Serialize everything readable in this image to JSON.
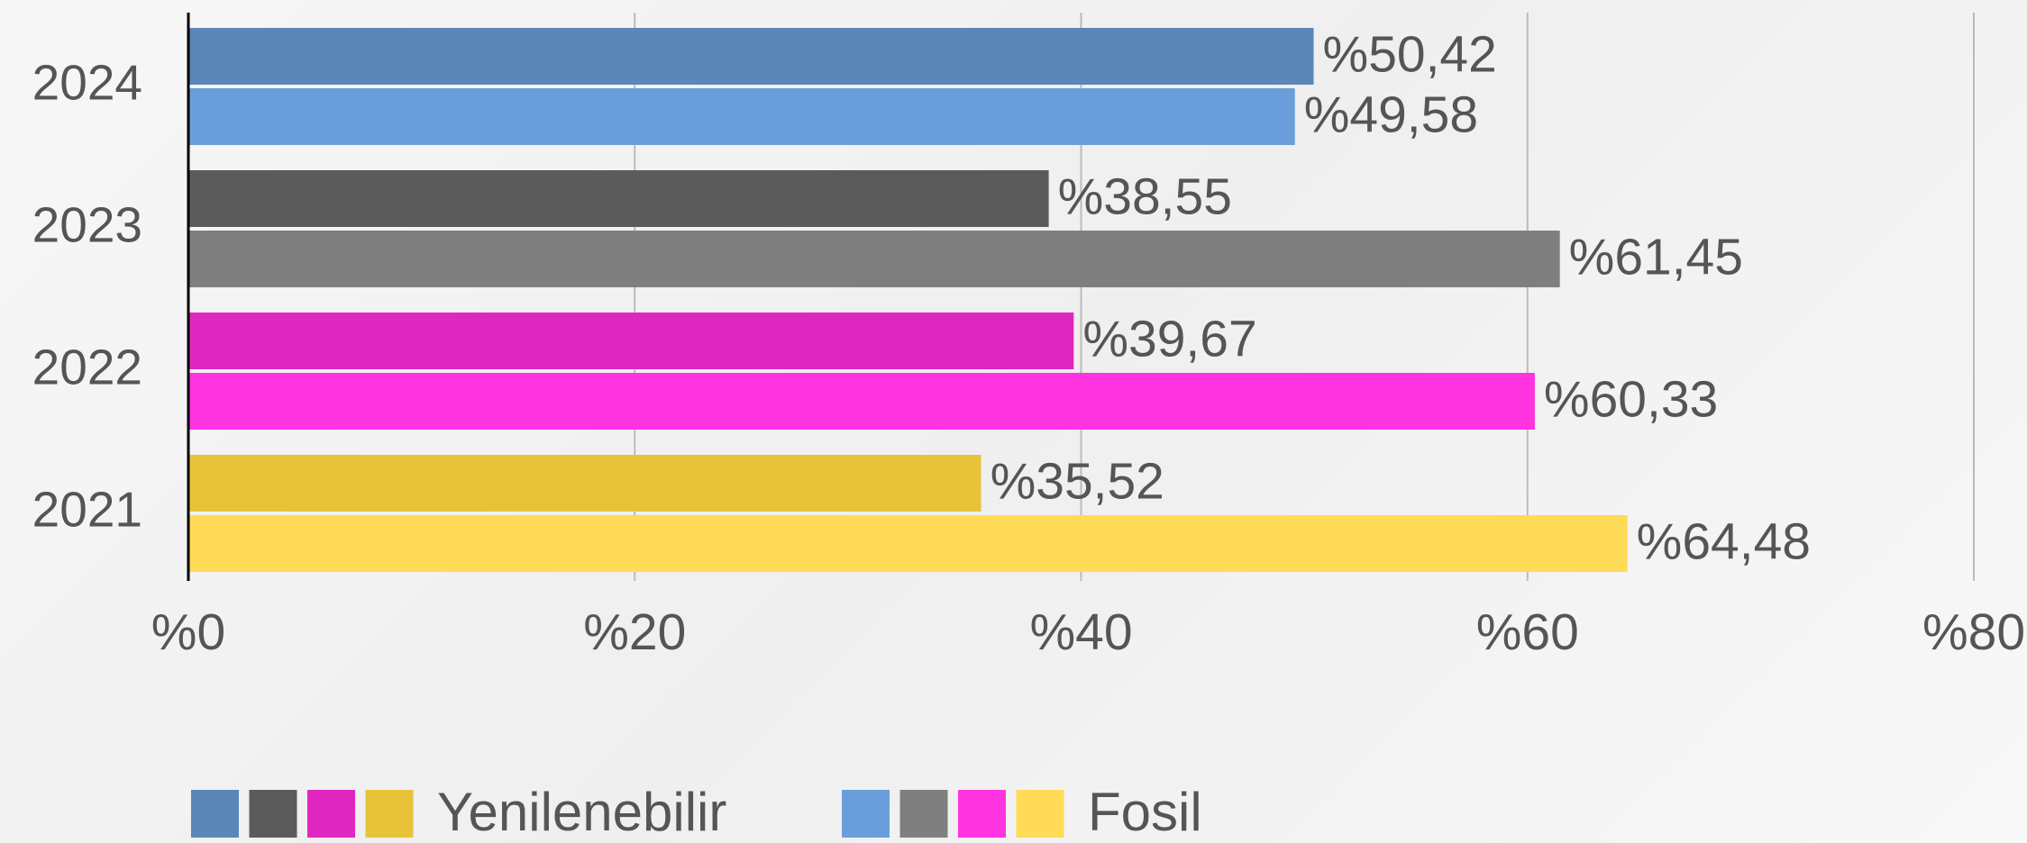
{
  "chart_data": {
    "type": "hbar",
    "categories": [
      "2024",
      "2023",
      "2022",
      "2021"
    ],
    "series": [
      {
        "name": "Yenilenebilir",
        "colors": [
          "#5b86b8",
          "#5b5b5b",
          "#df28c0",
          "#e8c33a"
        ],
        "values": [
          50.42,
          38.55,
          39.67,
          35.52
        ],
        "value_labels": [
          "%50,42",
          "%38,55",
          "%39,67",
          "%35,52"
        ]
      },
      {
        "name": "Fosil",
        "colors": [
          "#6a9edb",
          "#7f7f7f",
          "#ff33e0",
          "#ffdb58"
        ],
        "values": [
          49.58,
          61.45,
          60.33,
          64.48
        ],
        "value_labels": [
          "%49,58",
          "%61,45",
          "%60,33",
          "%64,48"
        ]
      }
    ],
    "xlim": [
      0,
      80
    ],
    "xticks": [
      {
        "value": 0,
        "label": "%0"
      },
      {
        "value": 20,
        "label": "%20"
      },
      {
        "value": 40,
        "label": "%40"
      },
      {
        "value": 60,
        "label": "%60"
      },
      {
        "value": 80,
        "label": "%80"
      }
    ],
    "grid": true
  }
}
